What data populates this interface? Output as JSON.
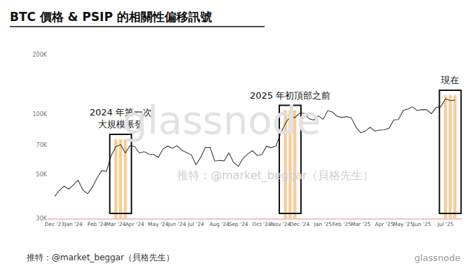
{
  "chart_data": {
    "type": "line",
    "title": "BTC 價格 & PSIP 的相關性偏移訊號",
    "categories": [
      "Dec '23",
      null,
      null,
      null,
      "Jan '24",
      null,
      null,
      null,
      null,
      "Feb '24",
      null,
      null,
      null,
      "Mar '24",
      null,
      null,
      null,
      "Apr '24",
      null,
      null,
      null,
      null,
      "May '24",
      null,
      null,
      null,
      "Jun '24",
      null,
      null,
      null,
      "Jul '24",
      null,
      null,
      null,
      null,
      "Aug '24",
      null,
      null,
      null,
      "Sep '24",
      null,
      null,
      null,
      null,
      "Oct '24",
      null,
      null,
      null,
      "Nov '24",
      null,
      null,
      null,
      "Dec '24",
      null,
      null,
      null,
      null,
      "Jan '25",
      null,
      null,
      null,
      "Feb '25",
      null,
      null,
      null,
      "Mar '25",
      null,
      null,
      null,
      null,
      "Apr '25",
      null,
      null,
      null,
      "May '25",
      null,
      null,
      null,
      "Jun '25",
      null,
      null,
      null,
      null,
      "Jul '25",
      null,
      null
    ],
    "series": [
      {
        "type": "line",
        "color": "#3c3c3c",
        "values": [
          38700,
          41400,
          43600,
          42100,
          44200,
          46600,
          41600,
          39900,
          43000,
          47800,
          52100,
          51700,
          62000,
          68900,
          70500,
          64000,
          69600,
          68900,
          63900,
          64900,
          63100,
          63000,
          60800,
          66900,
          69300,
          67500,
          69600,
          66000,
          64300,
          62700,
          55800,
          60800,
          68200,
          68300,
          58200,
          58700,
          58400,
          64200,
          57300,
          54800,
          60000,
          63300,
          65600,
          62100,
          62900,
          69000,
          68000,
          69400,
          80400,
          89900,
          98000,
          96400,
          101400,
          101400,
          95200,
          93700,
          98300,
          94500,
          104500,
          102600,
          97700,
          96500,
          97500,
          96100,
          86100,
          80700,
          82600,
          86100,
          82300,
          83500,
          83700,
          85200,
          93700,
          94300,
          104600,
          106400,
          109000,
          104600,
          105700,
          105500,
          100900,
          108400,
          109200,
          119800,
          117300,
          118000
        ]
      },
      {
        "type": "bar",
        "color": "#f8c78e",
        "values": [
          null,
          null,
          null,
          null,
          null,
          null,
          null,
          null,
          null,
          null,
          null,
          null,
          null,
          75000,
          75000,
          75000,
          null,
          null,
          null,
          null,
          null,
          null,
          null,
          null,
          null,
          null,
          null,
          null,
          null,
          null,
          null,
          null,
          null,
          null,
          null,
          null,
          null,
          null,
          null,
          null,
          null,
          null,
          null,
          null,
          null,
          null,
          null,
          null,
          null,
          105000,
          105000,
          105000,
          null,
          null,
          null,
          null,
          null,
          null,
          null,
          null,
          null,
          null,
          null,
          null,
          null,
          null,
          null,
          null,
          null,
          null,
          null,
          null,
          null,
          null,
          null,
          null,
          null,
          null,
          null,
          null,
          null,
          null,
          null,
          125000,
          125000,
          125000
        ]
      }
    ],
    "ylim": [
      30000,
      200000
    ],
    "yticks": [
      {
        "value": 30000,
        "label": "30K"
      },
      {
        "value": 50000,
        "label": "50K"
      },
      {
        "value": 70000,
        "label": "70K"
      },
      {
        "value": 100000,
        "label": "100K"
      },
      {
        "value": 200000,
        "label": "200K"
      }
    ],
    "log": "y",
    "grid": false,
    "annotations": [
      [
        "2024 年第一次",
        "大規模派發"
      ],
      [
        "2025 年初頂部之前"
      ],
      [
        "現在"
      ]
    ],
    "watermark": [
      "glassnode",
      "推特：@market_beggar（貝格先生）"
    ],
    "footer": [
      "推特：@market_beggar（貝格先生）",
      "glassnode"
    ]
  }
}
